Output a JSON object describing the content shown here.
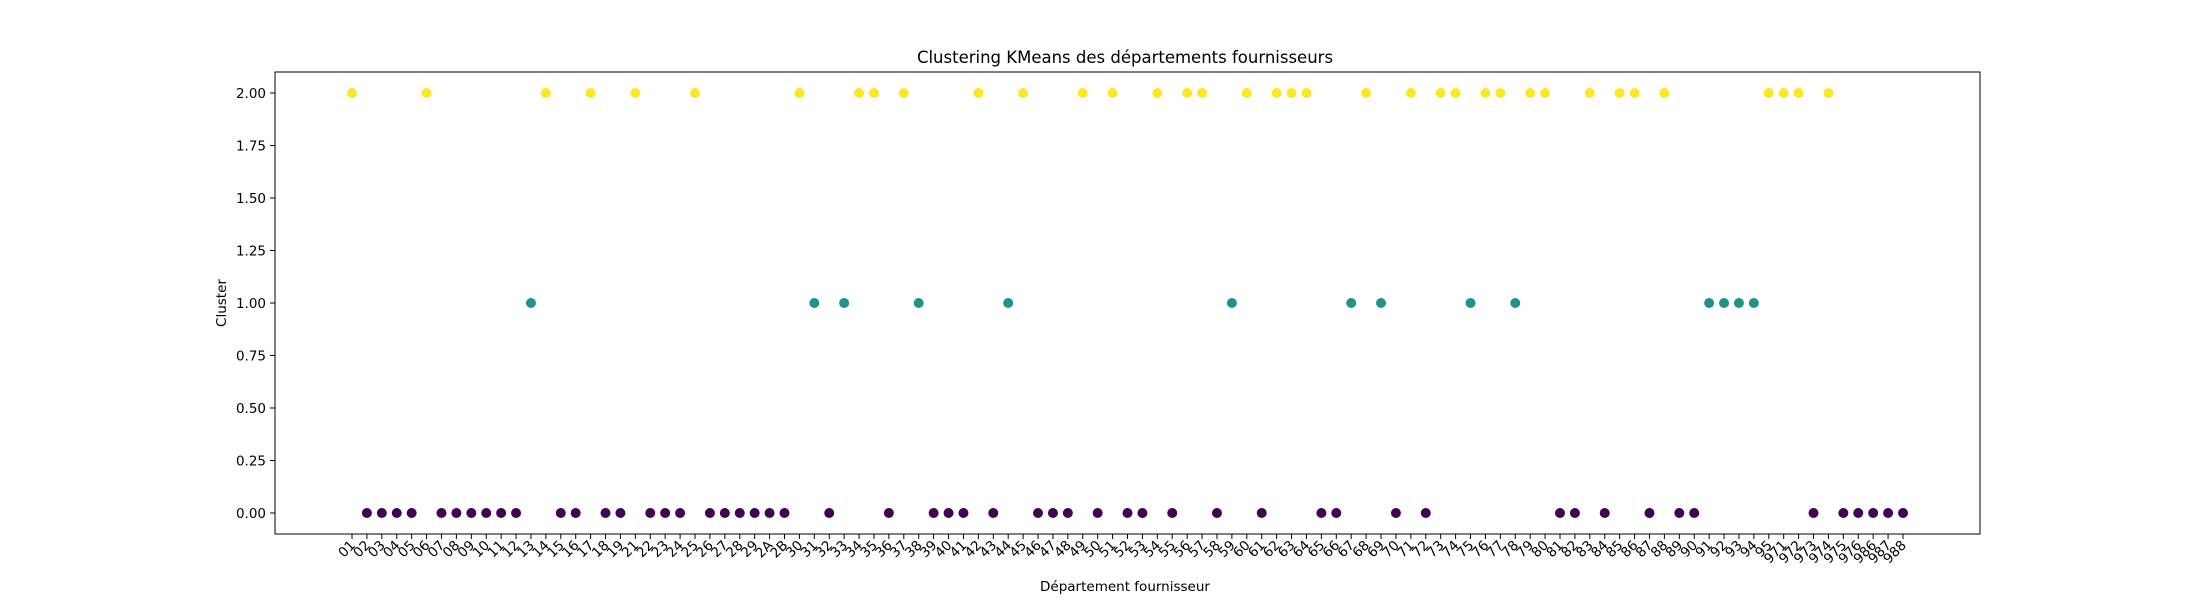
{
  "chart_data": {
    "type": "scatter",
    "title": "Clustering KMeans des départements fournisseurs",
    "xlabel": "Département fournisseur",
    "ylabel": "Cluster",
    "categories": [
      "01",
      "02",
      "03",
      "04",
      "05",
      "06",
      "07",
      "08",
      "09",
      "10",
      "11",
      "12",
      "13",
      "14",
      "15",
      "16",
      "17",
      "18",
      "19",
      "21",
      "22",
      "23",
      "24",
      "25",
      "26",
      "27",
      "28",
      "29",
      "2A",
      "2B",
      "30",
      "31",
      "32",
      "33",
      "34",
      "35",
      "36",
      "37",
      "38",
      "39",
      "40",
      "41",
      "42",
      "43",
      "44",
      "45",
      "46",
      "47",
      "48",
      "49",
      "50",
      "51",
      "52",
      "53",
      "54",
      "55",
      "56",
      "57",
      "58",
      "59",
      "60",
      "61",
      "62",
      "63",
      "64",
      "65",
      "66",
      "67",
      "68",
      "69",
      "70",
      "71",
      "72",
      "73",
      "74",
      "75",
      "76",
      "77",
      "78",
      "79",
      "80",
      "81",
      "82",
      "83",
      "84",
      "85",
      "86",
      "87",
      "88",
      "89",
      "90",
      "91",
      "92",
      "93",
      "94",
      "95",
      "971",
      "972",
      "973",
      "974",
      "975",
      "976",
      "986",
      "987",
      "988"
    ],
    "values": [
      2,
      0,
      0,
      0,
      0,
      2,
      0,
      0,
      0,
      0,
      0,
      0,
      1,
      2,
      0,
      0,
      2,
      0,
      0,
      2,
      0,
      0,
      0,
      2,
      0,
      0,
      0,
      0,
      0,
      0,
      2,
      1,
      0,
      1,
      2,
      2,
      0,
      2,
      1,
      0,
      0,
      0,
      2,
      0,
      1,
      2,
      0,
      0,
      0,
      2,
      0,
      2,
      0,
      0,
      2,
      0,
      2,
      2,
      0,
      1,
      2,
      0,
      2,
      2,
      2,
      0,
      0,
      1,
      2,
      1,
      0,
      2,
      0,
      2,
      2,
      1,
      2,
      2,
      1,
      2,
      2,
      0,
      0,
      2,
      0,
      2,
      2,
      0,
      2,
      0,
      0,
      1,
      1,
      1,
      1,
      2,
      2,
      2,
      0,
      2,
      0,
      0,
      0,
      0,
      0
    ],
    "cluster_colors": {
      "0": "#440154",
      "1": "#21918c",
      "2": "#fde725"
    },
    "ylim": [
      -0.1,
      2.1
    ],
    "yticks": [
      0.0,
      0.25,
      0.5,
      0.75,
      1.0,
      1.25,
      1.5,
      1.75,
      2.0
    ],
    "ytick_labels": [
      "0.00",
      "0.25",
      "0.50",
      "0.75",
      "1.00",
      "1.25",
      "1.50",
      "1.75",
      "2.00"
    ],
    "grid": false,
    "legend": "none"
  }
}
